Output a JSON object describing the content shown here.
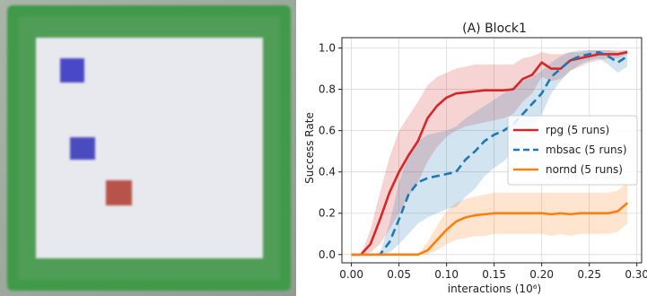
{
  "photo": {
    "frame_color": "#3f9a4a",
    "surface_color": "#e7e9ee",
    "blocks": [
      {
        "name": "blue-block-1",
        "color": "#4a4ac8"
      },
      {
        "name": "blue-block-2",
        "color": "#4c4cc0"
      },
      {
        "name": "red-block",
        "color": "#b85248"
      }
    ]
  },
  "chart_data": {
    "type": "line",
    "title": "(A) Block1",
    "xlabel": "interactions (10⁶)",
    "ylabel": "Success Rate",
    "xlim": [
      -0.01,
      0.305
    ],
    "ylim": [
      -0.04,
      1.05
    ],
    "xticks": [
      0.0,
      0.05,
      0.1,
      0.15,
      0.2,
      0.25,
      0.3
    ],
    "xtick_labels": [
      "0.00",
      "0.05",
      "0.10",
      "0.15",
      "0.20",
      "0.25",
      "0.30"
    ],
    "yticks": [
      0.0,
      0.2,
      0.4,
      0.6,
      0.8,
      1.0
    ],
    "ytick_labels": [
      "0.0",
      "0.2",
      "0.4",
      "0.6",
      "0.8",
      "1.0"
    ],
    "grid": true,
    "legend_position": "center-right",
    "series": [
      {
        "name": "rpg (5 runs)",
        "color": "#d62728",
        "dash": "solid",
        "points": [
          [
            0.0,
            0.0
          ],
          [
            0.01,
            0.0
          ],
          [
            0.02,
            0.05
          ],
          [
            0.03,
            0.17
          ],
          [
            0.04,
            0.3
          ],
          [
            0.05,
            0.4
          ],
          [
            0.06,
            0.48
          ],
          [
            0.07,
            0.55
          ],
          [
            0.08,
            0.66
          ],
          [
            0.09,
            0.72
          ],
          [
            0.1,
            0.76
          ],
          [
            0.11,
            0.78
          ],
          [
            0.12,
            0.785
          ],
          [
            0.13,
            0.79
          ],
          [
            0.14,
            0.795
          ],
          [
            0.15,
            0.795
          ],
          [
            0.16,
            0.795
          ],
          [
            0.17,
            0.8
          ],
          [
            0.18,
            0.85
          ],
          [
            0.19,
            0.87
          ],
          [
            0.2,
            0.93
          ],
          [
            0.21,
            0.9
          ],
          [
            0.22,
            0.9
          ],
          [
            0.23,
            0.94
          ],
          [
            0.24,
            0.95
          ],
          [
            0.25,
            0.96
          ],
          [
            0.26,
            0.97
          ],
          [
            0.27,
            0.97
          ],
          [
            0.28,
            0.97
          ],
          [
            0.29,
            0.98
          ]
        ],
        "band_low": [
          0.0,
          0.0,
          0.01,
          0.05,
          0.12,
          0.2,
          0.28,
          0.35,
          0.45,
          0.52,
          0.57,
          0.6,
          0.62,
          0.63,
          0.64,
          0.65,
          0.66,
          0.68,
          0.74,
          0.78,
          0.86,
          0.84,
          0.85,
          0.89,
          0.91,
          0.93,
          0.94,
          0.95,
          0.95,
          0.97
        ],
        "band_high": [
          0.0,
          0.0,
          0.12,
          0.3,
          0.47,
          0.6,
          0.67,
          0.74,
          0.82,
          0.86,
          0.88,
          0.9,
          0.91,
          0.92,
          0.92,
          0.92,
          0.92,
          0.92,
          0.95,
          0.96,
          0.98,
          0.97,
          0.97,
          0.98,
          0.98,
          0.99,
          0.99,
          0.99,
          0.99,
          0.99
        ]
      },
      {
        "name": "mbsac (5 runs)",
        "color": "#1f77b4",
        "dash": "dashed",
        "points": [
          [
            0.0,
            0.0
          ],
          [
            0.01,
            0.0
          ],
          [
            0.02,
            0.0
          ],
          [
            0.03,
            0.0
          ],
          [
            0.04,
            0.06
          ],
          [
            0.05,
            0.17
          ],
          [
            0.06,
            0.29
          ],
          [
            0.07,
            0.35
          ],
          [
            0.08,
            0.37
          ],
          [
            0.09,
            0.38
          ],
          [
            0.1,
            0.39
          ],
          [
            0.11,
            0.4
          ],
          [
            0.12,
            0.46
          ],
          [
            0.13,
            0.5
          ],
          [
            0.14,
            0.55
          ],
          [
            0.15,
            0.58
          ],
          [
            0.16,
            0.6
          ],
          [
            0.17,
            0.63
          ],
          [
            0.18,
            0.68
          ],
          [
            0.19,
            0.73
          ],
          [
            0.2,
            0.78
          ],
          [
            0.21,
            0.86
          ],
          [
            0.22,
            0.9
          ],
          [
            0.23,
            0.94
          ],
          [
            0.24,
            0.96
          ],
          [
            0.25,
            0.97
          ],
          [
            0.26,
            0.98
          ],
          [
            0.27,
            0.96
          ],
          [
            0.28,
            0.93
          ],
          [
            0.29,
            0.96
          ]
        ],
        "band_low": [
          0.0,
          0.0,
          0.0,
          0.0,
          0.01,
          0.05,
          0.1,
          0.15,
          0.18,
          0.2,
          0.22,
          0.23,
          0.28,
          0.32,
          0.38,
          0.42,
          0.45,
          0.5,
          0.56,
          0.62,
          0.68,
          0.78,
          0.84,
          0.89,
          0.92,
          0.94,
          0.95,
          0.92,
          0.88,
          0.91
        ],
        "band_high": [
          0.0,
          0.0,
          0.0,
          0.01,
          0.15,
          0.35,
          0.48,
          0.55,
          0.58,
          0.59,
          0.6,
          0.62,
          0.66,
          0.69,
          0.72,
          0.75,
          0.78,
          0.81,
          0.84,
          0.86,
          0.89,
          0.93,
          0.96,
          0.98,
          0.99,
          0.99,
          0.99,
          0.99,
          0.98,
          0.99
        ]
      },
      {
        "name": "nornd (5 runs)",
        "color": "#ff7f0e",
        "dash": "solid",
        "points": [
          [
            0.0,
            0.0
          ],
          [
            0.01,
            0.0
          ],
          [
            0.02,
            0.0
          ],
          [
            0.03,
            0.0
          ],
          [
            0.04,
            0.0
          ],
          [
            0.05,
            0.0
          ],
          [
            0.06,
            0.0
          ],
          [
            0.07,
            0.0
          ],
          [
            0.08,
            0.02
          ],
          [
            0.09,
            0.07
          ],
          [
            0.1,
            0.12
          ],
          [
            0.11,
            0.16
          ],
          [
            0.12,
            0.18
          ],
          [
            0.13,
            0.19
          ],
          [
            0.14,
            0.195
          ],
          [
            0.15,
            0.2
          ],
          [
            0.16,
            0.2
          ],
          [
            0.17,
            0.2
          ],
          [
            0.18,
            0.2
          ],
          [
            0.19,
            0.2
          ],
          [
            0.2,
            0.2
          ],
          [
            0.21,
            0.195
          ],
          [
            0.22,
            0.2
          ],
          [
            0.23,
            0.195
          ],
          [
            0.24,
            0.2
          ],
          [
            0.25,
            0.2
          ],
          [
            0.26,
            0.2
          ],
          [
            0.27,
            0.2
          ],
          [
            0.28,
            0.21
          ],
          [
            0.29,
            0.25
          ]
        ],
        "band_low": [
          0.0,
          0.0,
          0.0,
          0.0,
          0.0,
          0.0,
          0.0,
          0.0,
          0.0,
          0.02,
          0.05,
          0.07,
          0.08,
          0.09,
          0.09,
          0.1,
          0.1,
          0.1,
          0.1,
          0.1,
          0.1,
          0.09,
          0.1,
          0.09,
          0.1,
          0.1,
          0.1,
          0.1,
          0.11,
          0.15
        ],
        "band_high": [
          0.0,
          0.0,
          0.0,
          0.0,
          0.0,
          0.0,
          0.0,
          0.0,
          0.06,
          0.14,
          0.21,
          0.25,
          0.27,
          0.28,
          0.29,
          0.3,
          0.3,
          0.3,
          0.3,
          0.3,
          0.3,
          0.3,
          0.3,
          0.3,
          0.3,
          0.3,
          0.3,
          0.3,
          0.31,
          0.35
        ]
      }
    ]
  }
}
